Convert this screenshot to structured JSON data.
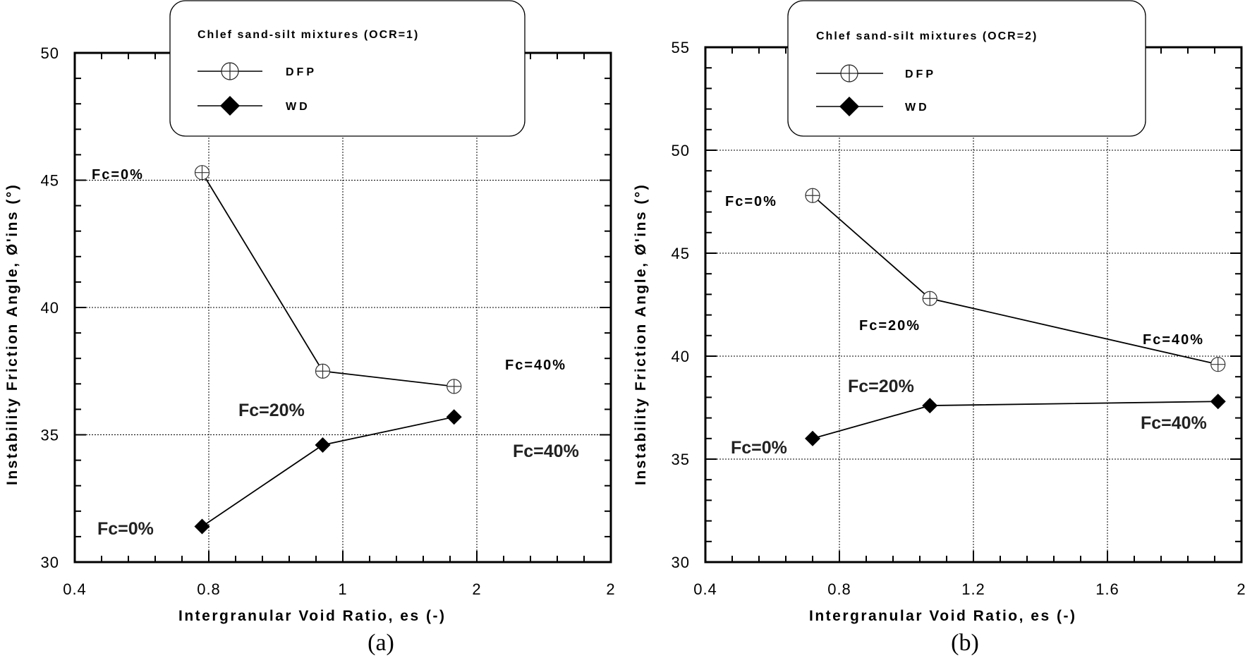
{
  "chart_data": [
    {
      "type": "line",
      "panel_label": "(a)",
      "legend_title": "Chlef sand-silt mixtures (OCR=1)",
      "xlabel": "Intergranular Void Ratio, es (-)",
      "ylabel": "Instability Friction Angle, Ø'ins (°)",
      "x_tick_labels": [
        "0.4",
        "0.8",
        "1",
        "2",
        "2"
      ],
      "y_ticks": [
        30,
        35,
        40,
        45,
        50
      ],
      "ylim": [
        30,
        50
      ],
      "series": [
        {
          "name": "DFP",
          "marker": "circle-cross",
          "points": [
            {
              "x": 0.78,
              "y": 45.3,
              "label": "Fc=0%"
            },
            {
              "x": 0.97,
              "y": 37.5,
              "label": "Fc=20%"
            },
            {
              "x": 1.83,
              "y": 36.9,
              "label": "Fc=40%"
            }
          ]
        },
        {
          "name": "WD",
          "marker": "diamond",
          "points": [
            {
              "x": 0.78,
              "y": 31.4,
              "label": "Fc=0%"
            },
            {
              "x": 0.97,
              "y": 34.6,
              "label": ""
            },
            {
              "x": 1.83,
              "y": 35.7,
              "label": "Fc=40%"
            }
          ]
        }
      ]
    },
    {
      "type": "line",
      "panel_label": "(b)",
      "legend_title": "Chlef sand-silt mixtures (OCR=2)",
      "xlabel": "Intergranular Void Ratio, es (-)",
      "ylabel": "Instability Friction Angle, Ø'ins (°)",
      "x_tick_labels": [
        "0.4",
        "0.8",
        "1.2",
        "1.6",
        "2"
      ],
      "y_ticks": [
        30,
        35,
        40,
        45,
        50,
        55
      ],
      "ylim": [
        30,
        55
      ],
      "xlim": [
        0.4,
        2.0
      ],
      "series": [
        {
          "name": "DFP",
          "marker": "circle-cross",
          "points": [
            {
              "x": 0.72,
              "y": 47.8,
              "label": "Fc=0%"
            },
            {
              "x": 1.07,
              "y": 42.8,
              "label": "Fc=20%"
            },
            {
              "x": 1.93,
              "y": 39.6,
              "label": "Fc=40%"
            }
          ]
        },
        {
          "name": "WD",
          "marker": "diamond",
          "points": [
            {
              "x": 0.72,
              "y": 36.0,
              "label": "Fc=0%"
            },
            {
              "x": 1.07,
              "y": 37.6,
              "label": "Fc=20%"
            },
            {
              "x": 1.93,
              "y": 37.8,
              "label": "Fc=40%"
            }
          ]
        }
      ]
    }
  ],
  "extra_annotation": "Fc=20%"
}
